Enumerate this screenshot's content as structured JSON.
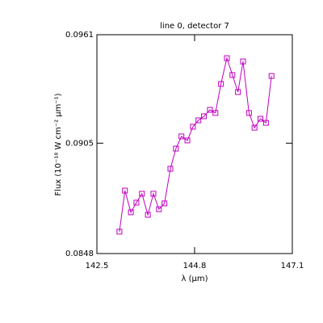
{
  "chart_data": {
    "type": "line",
    "title": "line 0, detector 7",
    "xlabel": "λ (μm)",
    "ylabel": "Flux (10⁻¹⁸ W cm⁻² μm⁻¹)",
    "x": [
      143.03,
      143.16,
      143.3,
      143.43,
      143.56,
      143.7,
      143.83,
      143.96,
      144.09,
      144.23,
      144.36,
      144.49,
      144.63,
      144.76,
      144.89,
      145.02,
      145.16,
      145.29,
      145.42,
      145.56,
      145.69,
      145.82,
      145.94,
      146.08,
      146.21,
      146.35,
      146.48,
      146.61
    ],
    "series": [
      {
        "color": "#c000c0",
        "values": [
          0.08593,
          0.08805,
          0.08693,
          0.08743,
          0.08789,
          0.0868,
          0.08789,
          0.08709,
          0.08739,
          0.08918,
          0.09022,
          0.09085,
          0.09064,
          0.09135,
          0.09168,
          0.09189,
          0.09222,
          0.09206,
          0.09356,
          0.09489,
          0.09402,
          0.09314,
          0.09472,
          0.09206,
          0.0913,
          0.09176,
          0.09155,
          0.09397
        ]
      }
    ],
    "xlim": [
      142.5,
      147.1
    ],
    "xticks": [
      142.5,
      144.8,
      147.1
    ],
    "ylim": [
      0.0848,
      0.0961
    ],
    "yticks": [
      0.0848,
      0.0905,
      0.0961
    ]
  }
}
